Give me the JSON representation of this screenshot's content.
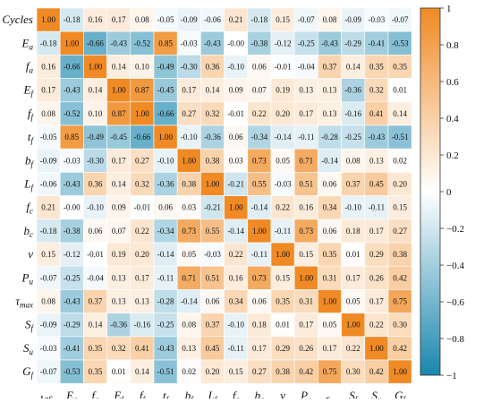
{
  "chart_data": {
    "type": "heatmap",
    "title": "",
    "xlabel": "",
    "ylabel": "",
    "row_labels": [
      "FT Cycles",
      "Ea",
      "fa",
      "Ef",
      "ff",
      "tf",
      "bf",
      "Lf",
      "fc",
      "bc",
      "v",
      "Pu",
      "τmax",
      "Sf",
      "Su",
      "Gf"
    ],
    "col_labels": [
      "FT Cycles",
      "Ea",
      "fa",
      "Ef",
      "ff",
      "tf",
      "bf",
      "Lf",
      "fc",
      "bc",
      "v",
      "Pu",
      "τmax",
      "Sf",
      "Su",
      "Gf"
    ],
    "values": [
      [
        1.0,
        -0.18,
        0.16,
        0.17,
        0.08,
        -0.05,
        -0.09,
        -0.06,
        0.21,
        -0.18,
        0.15,
        -0.07,
        0.08,
        -0.09,
        -0.03,
        -0.07
      ],
      [
        -0.18,
        1.0,
        -0.66,
        -0.43,
        -0.52,
        0.85,
        -0.03,
        -0.43,
        -0.0,
        -0.38,
        -0.12,
        -0.25,
        -0.43,
        -0.29,
        -0.41,
        -0.53
      ],
      [
        0.16,
        -0.66,
        1.0,
        0.14,
        0.1,
        -0.49,
        -0.3,
        0.36,
        -0.1,
        0.06,
        -0.01,
        -0.04,
        0.37,
        0.14,
        0.35,
        0.35
      ],
      [
        0.17,
        -0.43,
        0.14,
        1.0,
        0.87,
        -0.45,
        0.17,
        0.14,
        0.09,
        0.07,
        0.19,
        0.13,
        0.13,
        -0.36,
        0.32,
        0.01
      ],
      [
        0.08,
        -0.52,
        0.1,
        0.87,
        1.0,
        -0.66,
        0.27,
        0.32,
        -0.01,
        0.22,
        0.2,
        0.17,
        0.13,
        -0.16,
        0.41,
        0.14
      ],
      [
        -0.05,
        0.85,
        -0.49,
        -0.45,
        -0.66,
        1.0,
        -0.1,
        -0.36,
        0.06,
        -0.34,
        -0.14,
        -0.11,
        -0.28,
        -0.25,
        -0.43,
        -0.51
      ],
      [
        -0.09,
        -0.03,
        -0.3,
        0.17,
        0.27,
        -0.1,
        1.0,
        0.38,
        0.03,
        0.73,
        0.05,
        0.71,
        -0.14,
        0.08,
        0.13,
        0.02
      ],
      [
        -0.06,
        -0.43,
        0.36,
        0.14,
        0.32,
        -0.36,
        0.38,
        1.0,
        -0.21,
        0.55,
        -0.03,
        0.51,
        0.06,
        0.37,
        0.45,
        0.2
      ],
      [
        0.21,
        -0.0,
        -0.1,
        0.09,
        -0.01,
        0.06,
        0.03,
        -0.21,
        1.0,
        -0.14,
        0.22,
        0.16,
        0.34,
        -0.1,
        -0.11,
        0.15
      ],
      [
        -0.18,
        -0.38,
        0.06,
        0.07,
        0.22,
        -0.34,
        0.73,
        0.55,
        -0.14,
        1.0,
        -0.11,
        0.73,
        0.06,
        0.18,
        0.17,
        0.27
      ],
      [
        0.15,
        -0.12,
        -0.01,
        0.19,
        0.2,
        -0.14,
        0.05,
        -0.03,
        0.22,
        -0.11,
        1.0,
        0.15,
        0.35,
        0.01,
        0.29,
        0.38
      ],
      [
        -0.07,
        -0.25,
        -0.04,
        0.13,
        0.17,
        -0.11,
        0.71,
        0.51,
        0.16,
        0.73,
        0.15,
        1.0,
        0.31,
        0.17,
        0.26,
        0.42
      ],
      [
        0.08,
        -0.43,
        0.37,
        0.13,
        0.13,
        -0.28,
        -0.14,
        0.06,
        0.34,
        0.06,
        0.35,
        0.31,
        1.0,
        0.05,
        0.17,
        0.75
      ],
      [
        -0.09,
        -0.29,
        0.14,
        -0.36,
        -0.16,
        -0.25,
        0.08,
        0.37,
        -0.1,
        0.18,
        0.01,
        0.17,
        0.05,
        1.0,
        0.22,
        0.3
      ],
      [
        -0.03,
        -0.41,
        0.35,
        0.32,
        0.41,
        -0.43,
        0.13,
        0.45,
        -0.11,
        0.17,
        0.29,
        0.26,
        0.17,
        0.22,
        1.0,
        0.42
      ],
      [
        -0.07,
        -0.53,
        0.35,
        0.01,
        0.14,
        -0.51,
        0.02,
        0.2,
        0.15,
        0.27,
        0.38,
        0.42,
        0.75,
        0.3,
        0.42,
        1.0
      ]
    ],
    "colorbar": {
      "ticks": [
        1,
        0.8,
        0.6,
        0.4,
        0.2,
        0,
        -0.2,
        -0.4,
        -0.6,
        -0.8,
        -1
      ],
      "tick_labels": [
        "1",
        "0.8",
        "0.6",
        "0.4",
        "0.2",
        "0",
        "−0.2",
        "−0.4",
        "−0.6",
        "−0.8",
        "−1"
      ],
      "range": [
        -1,
        1
      ]
    },
    "colors": {
      "positive": "#f08a24",
      "neutral": "#ffffff",
      "negative": "#1a86ae"
    },
    "grid": false,
    "legend": "colorbar-right"
  }
}
